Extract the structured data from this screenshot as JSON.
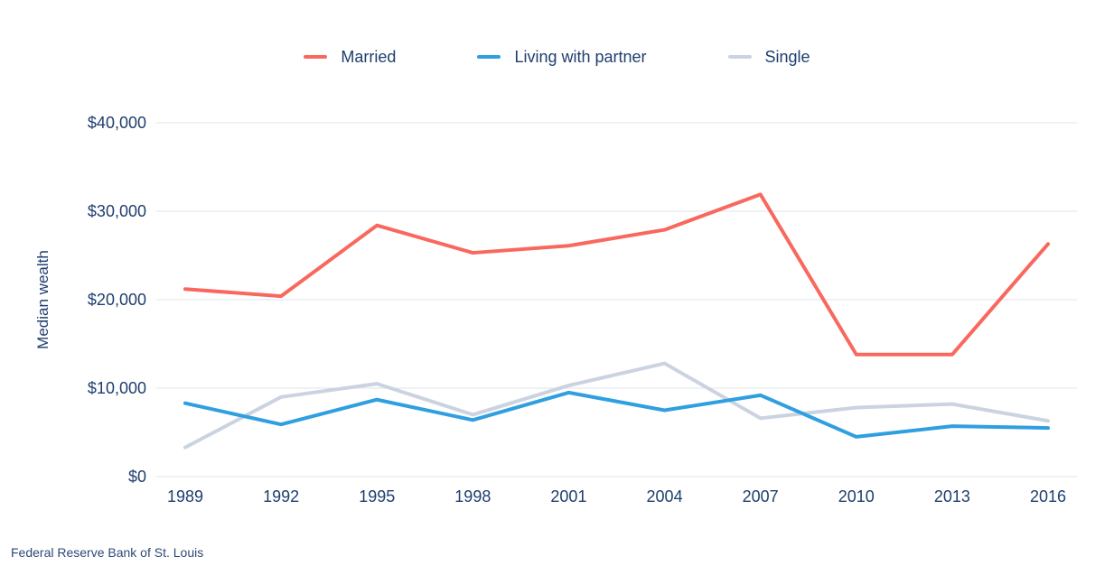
{
  "footer": {
    "source": "Federal Reserve Bank of St. Louis"
  },
  "colors": {
    "text": "#1f3e6e",
    "grid": "#dce3ee",
    "background": "#ffffff"
  },
  "chart_data": {
    "type": "line",
    "x": [
      "1989",
      "1992",
      "1995",
      "1998",
      "2001",
      "2004",
      "2007",
      "2010",
      "2013",
      "2016"
    ],
    "series": [
      {
        "name": "Married",
        "color": "#f9685e",
        "values": [
          21200,
          20400,
          28400,
          25300,
          26100,
          27900,
          31900,
          13800,
          13800,
          26300
        ]
      },
      {
        "name": "Living with partner",
        "color": "#2f9fe0",
        "values": [
          8300,
          5900,
          8700,
          6400,
          9500,
          7500,
          9200,
          4500,
          5700,
          5500
        ]
      },
      {
        "name": "Single",
        "color": "#cbd3e1",
        "values": [
          3300,
          9000,
          10500,
          7000,
          10300,
          12800,
          6600,
          7800,
          8200,
          6300
        ]
      }
    ],
    "ylabel": "Median wealth",
    "ylim": [
      0,
      40000
    ],
    "ytick_step": 10000,
    "ytick_prefix": "$",
    "grid": true,
    "legend_position": "top"
  }
}
